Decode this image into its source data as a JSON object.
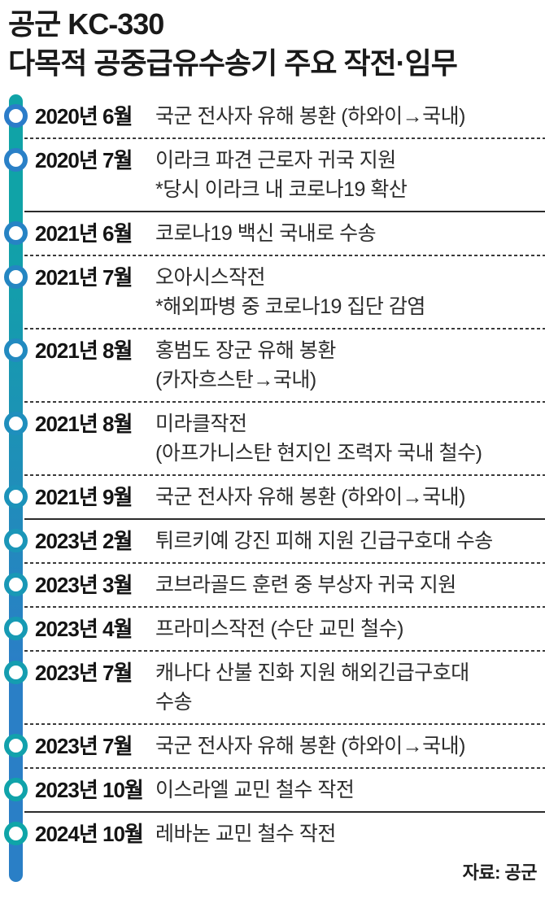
{
  "header": {
    "title_line1": "공군 KC-330",
    "title_line2": "다목적 공중급유수송기 주요 작전·임무"
  },
  "timeline": {
    "bar_colors": {
      "top": "#10A3A7",
      "bottom": "#2A7FC6"
    },
    "items": [
      {
        "date": "2020년 6월",
        "lines": [
          "국군 전사자 유해 봉환 (하와이→국내)"
        ],
        "separator": "dashed",
        "ring_color": "#2B7CC9"
      },
      {
        "date": "2020년 7월",
        "lines": [
          "이라크 파견 근로자 귀국 지원",
          "*당시 이라크 내 코로나19 확산"
        ],
        "separator": "solid",
        "ring_color": "#2A80C7"
      },
      {
        "date": "2021년 6월",
        "lines": [
          "코로나19 백신 국내로 수송"
        ],
        "separator": "dashed",
        "ring_color": "#2683C4"
      },
      {
        "date": "2021년 7월",
        "lines": [
          "오아시스작전",
          "*해외파병 중 코로나19 집단 감염"
        ],
        "separator": "dashed",
        "ring_color": "#2486C2"
      },
      {
        "date": "2021년 8월",
        "lines": [
          "홍범도 장군 유해 봉환",
          "(카자흐스탄→국내)"
        ],
        "separator": "dashed",
        "ring_color": "#228AC0"
      },
      {
        "date": "2021년 8월",
        "lines": [
          "미라클작전",
          "(아프가니스탄 현지인 조력자 국내 철수)"
        ],
        "separator": "dashed",
        "ring_color": "#1F8FBD"
      },
      {
        "date": "2021년 9월",
        "lines": [
          "국군 전사자 유해 봉환 (하와이→국내)"
        ],
        "separator": "solid",
        "ring_color": "#1C93BA"
      },
      {
        "date": "2023년 2월",
        "lines": [
          "튀르키예 강진 피해 지원 긴급구호대 수송"
        ],
        "separator": "dashed",
        "ring_color": "#1B96B8"
      },
      {
        "date": "2023년 3월",
        "lines": [
          "코브라골드 훈련 중 부상자 귀국 지원"
        ],
        "separator": "dashed",
        "ring_color": "#1998B6"
      },
      {
        "date": "2023년 4월",
        "lines": [
          "프라미스작전 (수단 교민 철수)"
        ],
        "separator": "dashed",
        "ring_color": "#179AB4"
      },
      {
        "date": "2023년 7월",
        "lines": [
          "캐나다 산불 진화 지원 해외긴급구호대",
          "수송"
        ],
        "separator": "dashed",
        "ring_color": "#159DB0"
      },
      {
        "date": "2023년 7월",
        "lines": [
          "국군 전사자 유해 봉환 (하와이→국내)"
        ],
        "separator": "dashed",
        "ring_color": "#12A1AC"
      },
      {
        "date": "2023년 10월",
        "lines": [
          "이스라엘 교민 철수 작전"
        ],
        "separator": "solid",
        "ring_color": "#10A3AA"
      },
      {
        "date": "2024년 10월",
        "lines": [
          "레바논 교민 철수 작전"
        ],
        "separator": "none",
        "ring_color": "#0FA5A8"
      }
    ]
  },
  "source": "자료: 공군"
}
